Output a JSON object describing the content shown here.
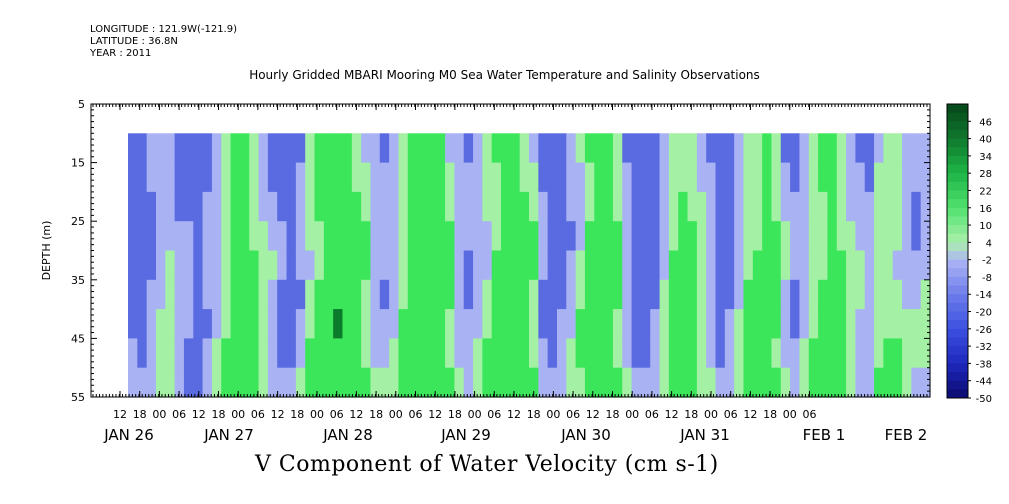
{
  "header": {
    "longitude": "LONGITUDE : 121.9W(-121.9)",
    "latitude": "LATITUDE : 36.8N",
    "year": "YEAR : 2011"
  },
  "chart_data": {
    "type": "heatmap",
    "title": "Hourly Gridded MBARI Mooring M0 Sea Water Temperature and Salinity Observations",
    "variable_label": "V Component of Water Velocity (cm s-1)",
    "ylabel": "DEPTH (m)",
    "ylim": [
      55,
      5
    ],
    "y_ticks": [
      5,
      15,
      25,
      35,
      45,
      55
    ],
    "data_depth_range": [
      10,
      55
    ],
    "x_hour_ticks": [
      "12",
      "18",
      "00",
      "06",
      "12",
      "18",
      "00",
      "06",
      "12",
      "18",
      "00",
      "06",
      "12",
      "18",
      "00",
      "06",
      "12",
      "18",
      "00",
      "06",
      "12",
      "18",
      "00",
      "06",
      "12",
      "18",
      "00",
      "06",
      "12",
      "18",
      "00",
      "06",
      "12",
      "18",
      "00",
      "06"
    ],
    "x_date_ticks": [
      "JAN 26",
      "JAN 27",
      "JAN 28",
      "JAN 29",
      "JAN 30",
      "JAN 31",
      "FEB  1",
      "FEB  2"
    ],
    "colorbar": {
      "labels": [
        "46",
        "40",
        "34",
        "28",
        "22",
        "16",
        "10",
        "4",
        "-2",
        "-8",
        "-14",
        "-20",
        "-26",
        "-32",
        "-38",
        "-44",
        "-50"
      ],
      "range": [
        -50,
        52
      ]
    },
    "colors": {
      "strong_negative": "#1a1aa0",
      "negative": "#5a6ae0",
      "weak_negative": "#a9b2f3",
      "weak_positive": "#a4f0a4",
      "positive": "#3ce65a",
      "strong_positive": "#0b7a2a"
    },
    "approx_column_velocities_cm_s": [
      -9,
      -12,
      -6,
      -2,
      1,
      -4,
      -8,
      -10,
      -6,
      -2,
      4,
      10,
      14,
      8,
      2,
      -3,
      -8,
      -10,
      -5,
      2,
      8,
      14,
      18,
      16,
      10,
      4,
      -2,
      -5,
      -2,
      4,
      10,
      14,
      16,
      12,
      6,
      -2,
      -6,
      -4,
      2,
      8,
      12,
      14,
      10,
      4,
      -6,
      -10,
      -8,
      -4,
      2,
      10,
      14,
      12,
      6,
      -4,
      -10,
      -12,
      -8,
      -2,
      6,
      10,
      8,
      2,
      -4,
      -10,
      -8,
      -2,
      4,
      8,
      12,
      6,
      -2,
      -6,
      -2,
      4,
      8,
      10,
      6,
      2,
      -2,
      -4,
      2,
      4,
      2,
      -2,
      -4,
      -2
    ]
  }
}
